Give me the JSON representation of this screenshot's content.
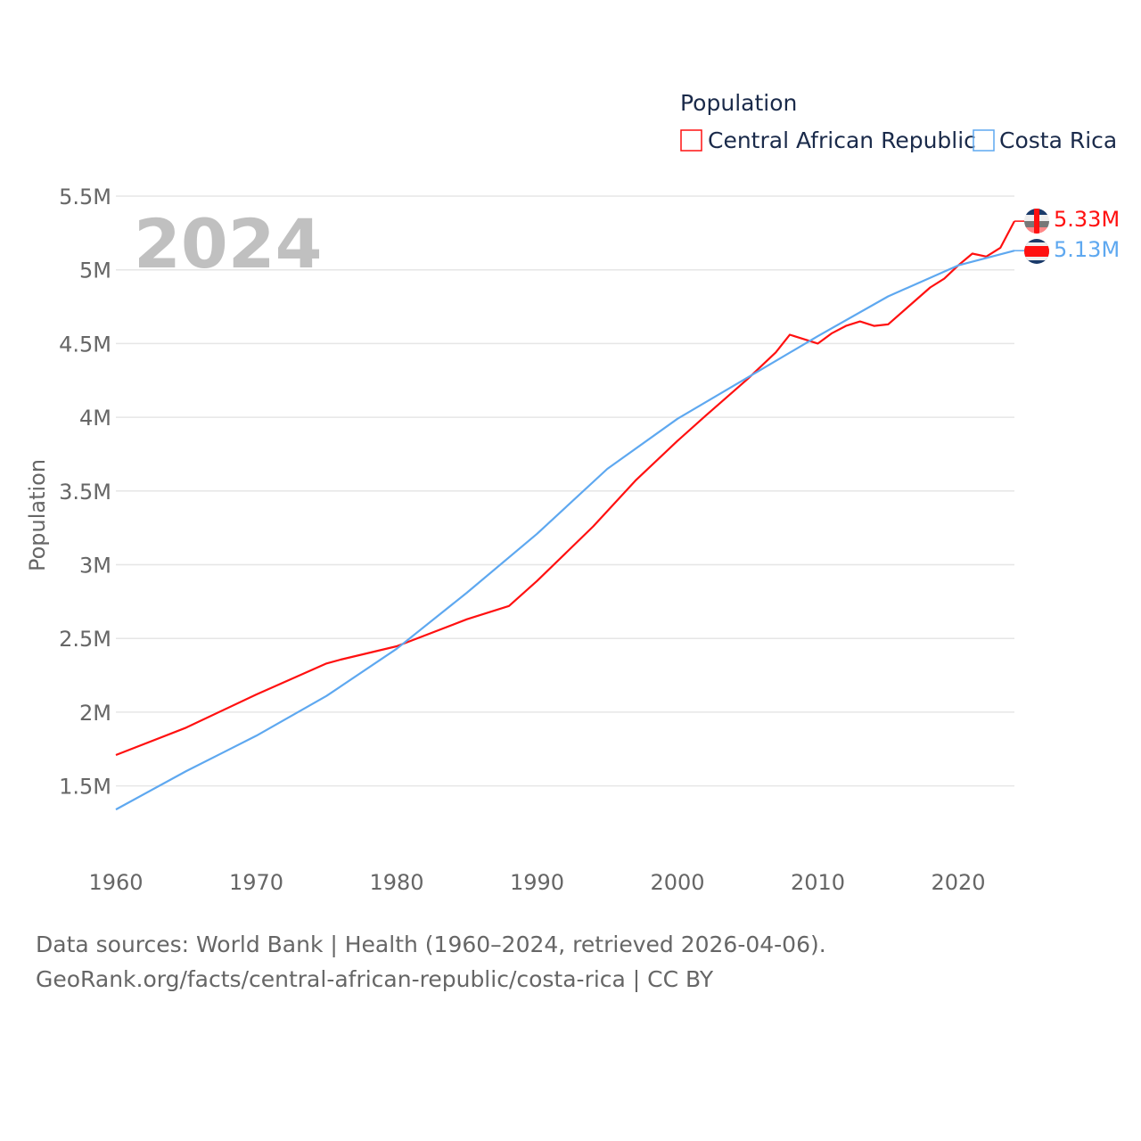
{
  "chart_data": {
    "type": "line",
    "title": "Population",
    "ylabel": "Population",
    "xlabel": "",
    "year_label": "2024",
    "xlim": [
      1960,
      2024
    ],
    "ylim": [
      1000000,
      5500000
    ],
    "x_ticks": [
      1960,
      1970,
      1980,
      1990,
      2000,
      2010,
      2020
    ],
    "y_ticks": [
      {
        "value": 1500000,
        "label": "1.5M"
      },
      {
        "value": 2000000,
        "label": "2M"
      },
      {
        "value": 2500000,
        "label": "2.5M"
      },
      {
        "value": 3000000,
        "label": "3M"
      },
      {
        "value": 3500000,
        "label": "3.5M"
      },
      {
        "value": 4000000,
        "label": "4M"
      },
      {
        "value": 4500000,
        "label": "4.5M"
      },
      {
        "value": 5000000,
        "label": "5M"
      },
      {
        "value": 5500000,
        "label": "5.5M"
      }
    ],
    "grid": true,
    "legend_position": "top-right",
    "series": [
      {
        "name": "Central African Republic",
        "color": "#ff1010",
        "end_label": "5.33M",
        "x": [
          1960,
          1965,
          1970,
          1975,
          1976,
          1980,
          1985,
          1988,
          1990,
          1994,
          1997,
          2000,
          2002,
          2005,
          2007,
          2008,
          2010,
          2011,
          2012,
          2013,
          2014,
          2015,
          2018,
          2019,
          2020,
          2021,
          2022,
          2023,
          2024
        ],
        "y": [
          1709000,
          1895000,
          2120000,
          2330000,
          2356000,
          2447000,
          2630000,
          2720000,
          2890000,
          3260000,
          3570000,
          3840000,
          4010000,
          4260000,
          4440000,
          4560000,
          4500000,
          4570000,
          4620000,
          4650000,
          4620000,
          4630000,
          4880000,
          4940000,
          5030000,
          5110000,
          5090000,
          5150000,
          5330000
        ]
      },
      {
        "name": "Costa Rica",
        "color": "#5ea8f0",
        "end_label": "5.13M",
        "x": [
          1960,
          1965,
          1970,
          1975,
          1980,
          1985,
          1990,
          1995,
          2000,
          2005,
          2010,
          2015,
          2020,
          2024
        ],
        "y": [
          1340000,
          1600000,
          1840000,
          2110000,
          2430000,
          2810000,
          3210000,
          3650000,
          3990000,
          4270000,
          4550000,
          4820000,
          5030000,
          5130000
        ]
      }
    ]
  },
  "footer": {
    "source": "Data sources: World Bank | Health (1960–2024, retrieved 2026-04-06).",
    "url": "GeoRank.org/facts/central-african-republic/costa-rica | CC BY"
  }
}
